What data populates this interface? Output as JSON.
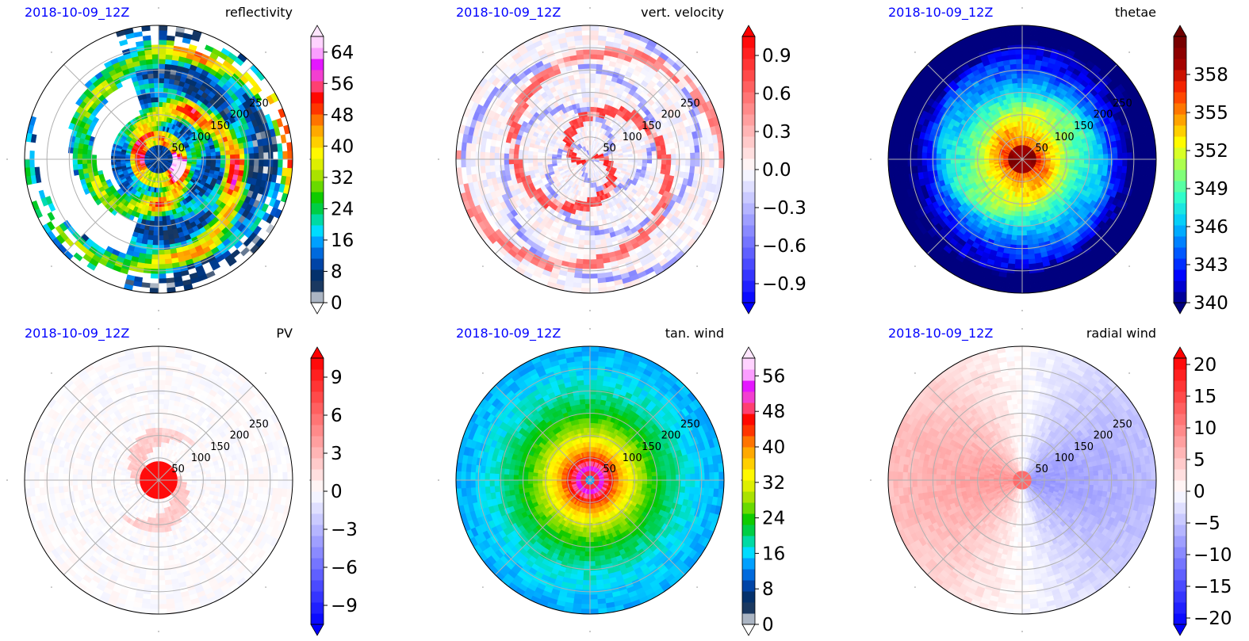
{
  "chart_data": [
    {
      "type": "heatmap",
      "projection": "polar",
      "date_label": "2018-10-09_12Z",
      "title": "reflectivity",
      "ring_labels": [
        "50",
        "100",
        "150",
        "200",
        "250"
      ],
      "rings": [
        50,
        100,
        150,
        200,
        250
      ],
      "rmax": 300,
      "colorbar": {
        "min": 0,
        "max": 68,
        "ticks": [
          0,
          8,
          16,
          24,
          32,
          40,
          48,
          56,
          64
        ],
        "extend": "both",
        "cmap": "radar"
      },
      "field": "reflectivity"
    },
    {
      "type": "heatmap",
      "projection": "polar",
      "date_label": "2018-10-09_12Z",
      "title": "vert. velocity",
      "ring_labels": [
        "50",
        "100",
        "150",
        "200",
        "250"
      ],
      "rings": [
        50,
        100,
        150,
        200,
        250
      ],
      "rmax": 300,
      "colorbar": {
        "min": -1.05,
        "max": 1.05,
        "ticks": [
          -0.9,
          -0.6,
          -0.3,
          0.0,
          0.3,
          0.6,
          0.9
        ],
        "tick_labels": [
          "−0.9",
          "−0.6",
          "−0.3",
          "0.0",
          "0.3",
          "0.6",
          "0.9"
        ],
        "extend": "both",
        "cmap": "bwr"
      },
      "field": "vertical_velocity"
    },
    {
      "type": "heatmap",
      "projection": "polar",
      "date_label": "2018-10-09_12Z",
      "title": "thetae",
      "ring_labels": [
        "50",
        "100",
        "150",
        "200",
        "250"
      ],
      "rings": [
        50,
        100,
        150,
        200,
        250
      ],
      "rmax": 300,
      "colorbar": {
        "min": 340,
        "max": 361,
        "ticks": [
          340,
          343,
          346,
          349,
          352,
          355,
          358
        ],
        "extend": "both",
        "cmap": "jet"
      },
      "field": "thetae"
    },
    {
      "type": "heatmap",
      "projection": "polar",
      "date_label": "2018-10-09_12Z",
      "title": "PV",
      "ring_labels": [
        "50",
        "100",
        "150",
        "200",
        "250"
      ],
      "rings": [
        50,
        100,
        150,
        200,
        250
      ],
      "rmax": 300,
      "colorbar": {
        "min": -10.5,
        "max": 10.5,
        "ticks": [
          -9,
          -6,
          -3,
          0,
          3,
          6,
          9
        ],
        "tick_labels": [
          "−9",
          "−6",
          "−3",
          "0",
          "3",
          "6",
          "9"
        ],
        "extend": "both",
        "cmap": "bwr"
      },
      "field": "pv"
    },
    {
      "type": "heatmap",
      "projection": "polar",
      "date_label": "2018-10-09_12Z",
      "title": "tan. wind",
      "ring_labels": [
        "50",
        "100",
        "150",
        "200",
        "250"
      ],
      "rings": [
        50,
        100,
        150,
        200,
        250
      ],
      "rmax": 300,
      "colorbar": {
        "min": 0,
        "max": 60,
        "ticks": [
          0,
          8,
          16,
          24,
          32,
          40,
          48,
          56
        ],
        "extend": "both",
        "cmap": "radar"
      },
      "field": "tangential_wind"
    },
    {
      "type": "heatmap",
      "projection": "polar",
      "date_label": "2018-10-09_12Z",
      "title": "radial wind",
      "ring_labels": [
        "50",
        "100",
        "150",
        "200",
        "250"
      ],
      "rings": [
        50,
        100,
        150,
        200,
        250
      ],
      "rmax": 300,
      "colorbar": {
        "min": -21,
        "max": 21,
        "ticks": [
          -20,
          -15,
          -10,
          -5,
          0,
          5,
          10,
          15,
          20
        ],
        "tick_labels": [
          "−20",
          "−15",
          "−10",
          "−5",
          "0",
          "5",
          "10",
          "15",
          "20"
        ],
        "extend": "both",
        "cmap": "bwr"
      },
      "field": "radial_wind"
    }
  ],
  "colors": {
    "date_label": "#0000ff",
    "grid": "#b0b0b0",
    "outline": "#000000",
    "radar_cmap": [
      "#ffffff",
      "#1f3a5f",
      "#00306e",
      "#0050c8",
      "#0096ff",
      "#00e6ff",
      "#00d26e",
      "#00c800",
      "#78dc00",
      "#c8e600",
      "#ffff00",
      "#ffc800",
      "#ff9600",
      "#ff3c00",
      "#ff0000",
      "#ff64b4",
      "#e000ff",
      "#ffb4ff",
      "#ffe6ff"
    ],
    "jet_cmap": [
      "#00007f",
      "#0000ff",
      "#0064ff",
      "#00c8ff",
      "#32ffc8",
      "#96ff64",
      "#ffff00",
      "#ff9600",
      "#ff2800",
      "#a00000",
      "#6e0000"
    ],
    "bwr_negative": "#0000ff",
    "bwr_positive": "#ff0000"
  }
}
